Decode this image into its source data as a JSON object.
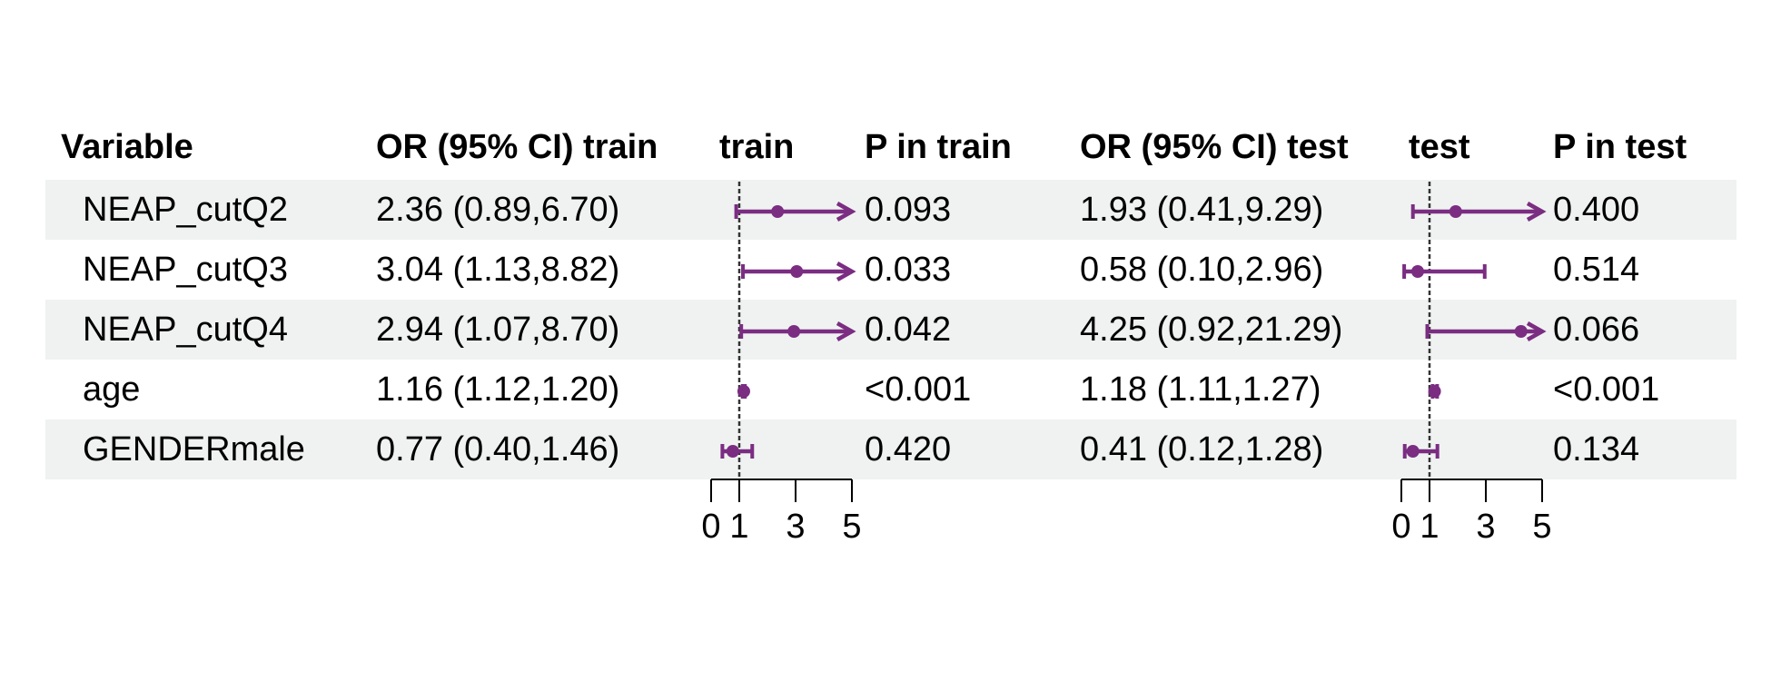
{
  "chart_data": {
    "type": "forest",
    "headers": {
      "variable": "Variable",
      "or_train": "OR (95% CI) train",
      "plot_train": "train",
      "p_train": "P in train",
      "or_test": "OR (95% CI) test",
      "plot_test": "test",
      "p_test": "P in test"
    },
    "rows": [
      {
        "variable": "NEAP_cutQ2",
        "or_train_text": "2.36 (0.89,6.70)",
        "p_train": "0.093",
        "or_test_text": "1.93 (0.41,9.29)",
        "p_test": "0.400",
        "train": {
          "or": 2.36,
          "lower": 0.89,
          "upper": 6.7
        },
        "test": {
          "or": 1.93,
          "lower": 0.41,
          "upper": 9.29
        }
      },
      {
        "variable": "NEAP_cutQ3",
        "or_train_text": "3.04 (1.13,8.82)",
        "p_train": "0.033",
        "or_test_text": "0.58 (0.10,2.96)",
        "p_test": "0.514",
        "train": {
          "or": 3.04,
          "lower": 1.13,
          "upper": 8.82
        },
        "test": {
          "or": 0.58,
          "lower": 0.1,
          "upper": 2.96
        }
      },
      {
        "variable": "NEAP_cutQ4",
        "or_train_text": "2.94 (1.07,8.70)",
        "p_train": "0.042",
        "or_test_text": "4.25 (0.92,21.29)",
        "p_test": "0.066",
        "train": {
          "or": 2.94,
          "lower": 1.07,
          "upper": 8.7
        },
        "test": {
          "or": 4.25,
          "lower": 0.92,
          "upper": 21.29
        }
      },
      {
        "variable": "age",
        "or_train_text": "1.16 (1.12,1.20)",
        "p_train": "<0.001",
        "or_test_text": "1.18 (1.11,1.27)",
        "p_test": "<0.001",
        "train": {
          "or": 1.16,
          "lower": 1.12,
          "upper": 1.2
        },
        "test": {
          "or": 1.18,
          "lower": 1.11,
          "upper": 1.27
        }
      },
      {
        "variable": "GENDERmale",
        "or_train_text": "0.77 (0.40,1.46)",
        "p_train": "0.420",
        "or_test_text": "0.41 (0.12,1.28)",
        "p_test": "0.134",
        "train": {
          "or": 0.77,
          "lower": 0.4,
          "upper": 1.46
        },
        "test": {
          "or": 0.41,
          "lower": 0.12,
          "upper": 1.28
        }
      }
    ],
    "x_axis": {
      "ticks": [
        0,
        1,
        3,
        5
      ],
      "xlim": [
        0,
        5
      ],
      "reference_line": 1
    },
    "colors": {
      "marker": "#7b2d82",
      "band": "#eff2f1",
      "reference": "#333333"
    }
  }
}
